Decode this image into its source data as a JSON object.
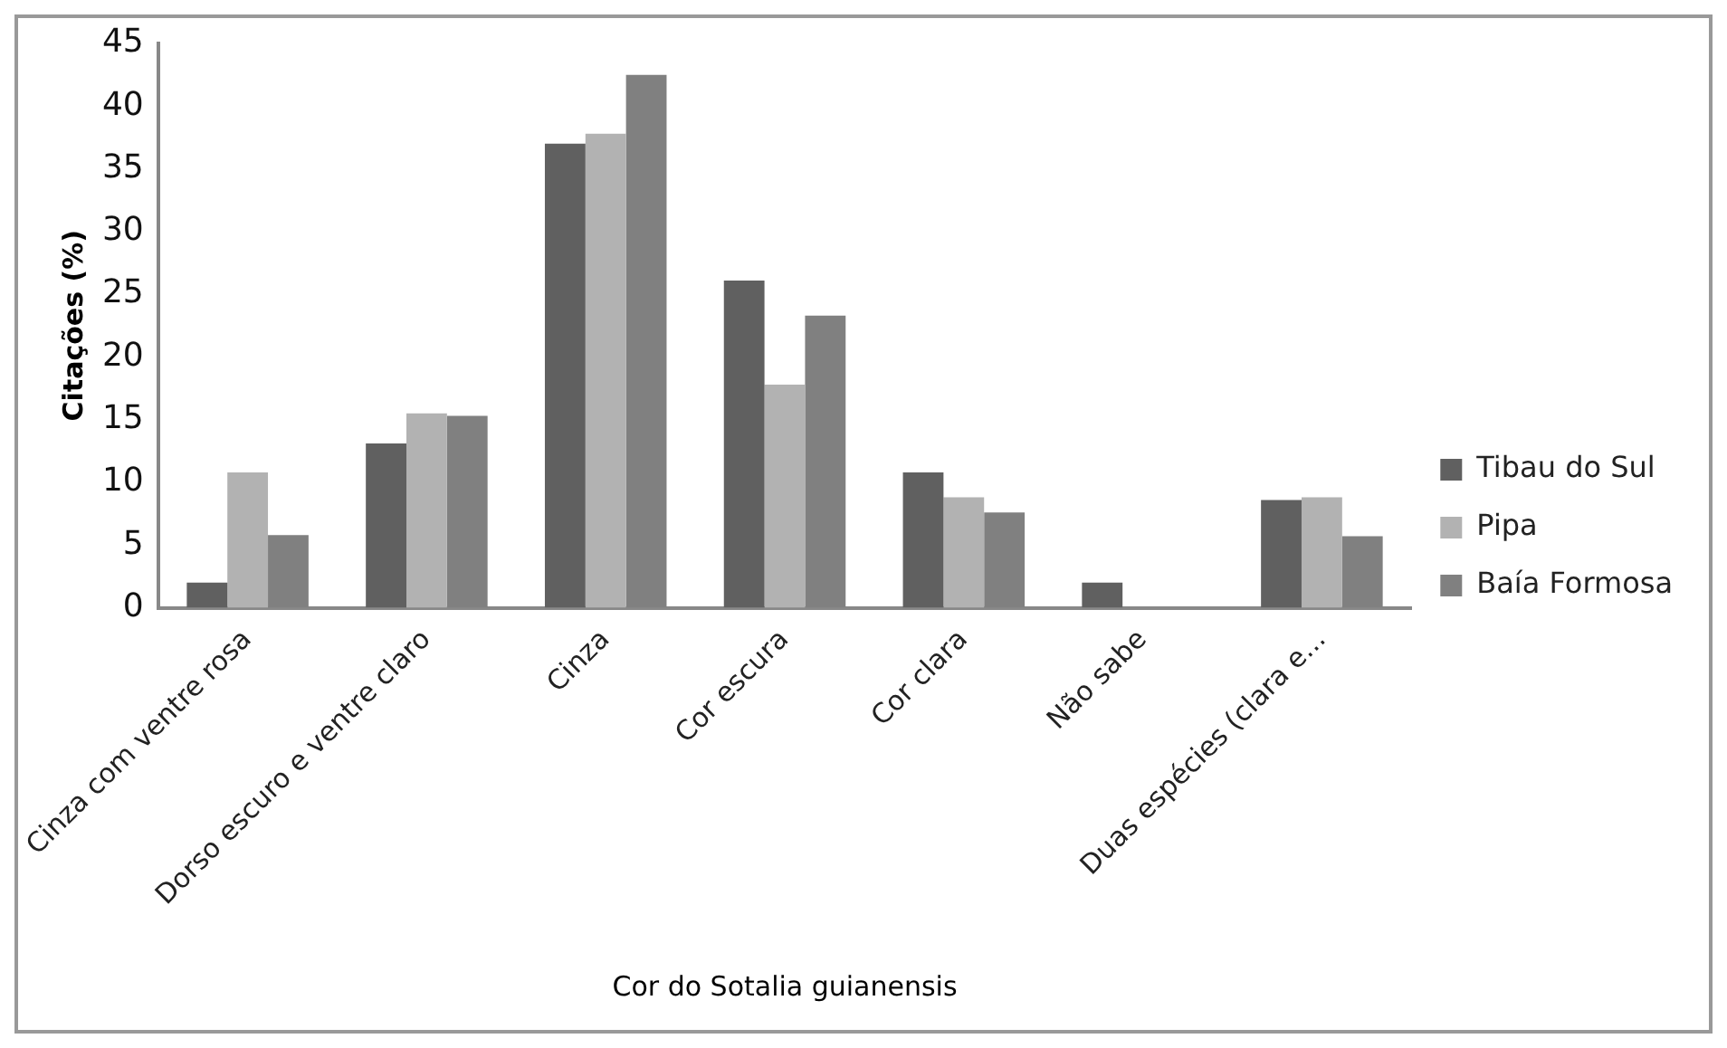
{
  "chart_data": {
    "type": "bar",
    "xlabel": "Cor do Sotalia guianensis",
    "ylabel": "Citações (%)",
    "categories": [
      "Cinza com ventre rosa",
      "Dorso escuro e ventre claro",
      "Cinza",
      "Cor escura",
      "Cor clara",
      "Não sabe",
      "Duas espécies (clara e..."
    ],
    "series": [
      {
        "name": "Tibau do Sul",
        "color": "#606060",
        "values": [
          2.0,
          13.1,
          37.0,
          26.1,
          10.8,
          2.0,
          8.6
        ]
      },
      {
        "name": "Pipa",
        "color": "#b2b2b2",
        "values": [
          10.8,
          15.5,
          37.8,
          17.8,
          8.8,
          0,
          8.8
        ]
      },
      {
        "name": "Baía Formosa",
        "color": "#808080",
        "values": [
          5.8,
          15.3,
          42.5,
          23.3,
          7.6,
          0,
          5.7
        ]
      }
    ],
    "ylim": [
      0,
      45
    ],
    "yticks": [
      0,
      5,
      10,
      15,
      20,
      25,
      30,
      35,
      40,
      45
    ],
    "grid": false,
    "legend": "right"
  }
}
